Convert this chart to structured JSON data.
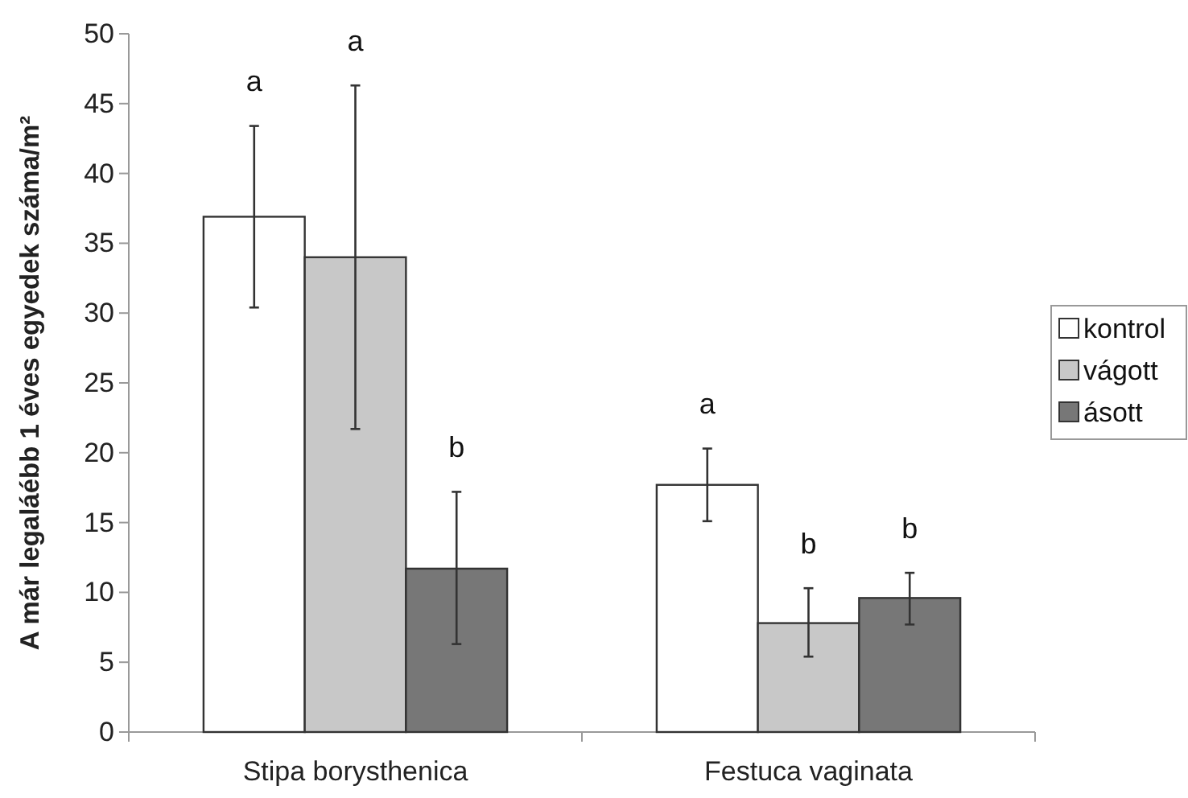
{
  "chart_data": {
    "type": "bar",
    "ylabel": "A már legaláébb 1 éves egyedek száma/m²",
    "categories": [
      "Stipa borysthenica",
      "Festuca vaginata"
    ],
    "series": [
      {
        "name": "kontrol",
        "color": "#ffffff",
        "values": [
          36.9,
          17.7
        ],
        "errors": [
          [
            30.4,
            43.4
          ],
          [
            15.1,
            20.3
          ]
        ]
      },
      {
        "name": "vágott",
        "color": "#c8c8c8",
        "values": [
          34.0,
          7.8
        ],
        "errors": [
          [
            21.7,
            46.3
          ],
          [
            5.4,
            10.3
          ]
        ]
      },
      {
        "name": "ásott",
        "color": "#777777",
        "values": [
          11.7,
          9.6
        ],
        "errors": [
          [
            6.3,
            17.2
          ],
          [
            7.7,
            11.4
          ]
        ]
      }
    ],
    "ylim": [
      0,
      50
    ],
    "yticks": [
      0,
      5,
      10,
      15,
      20,
      25,
      30,
      35,
      40,
      45,
      50
    ],
    "grid": false,
    "legend": "right",
    "annotations": [
      "a",
      "a",
      "b",
      "a",
      "b",
      "b"
    ]
  }
}
